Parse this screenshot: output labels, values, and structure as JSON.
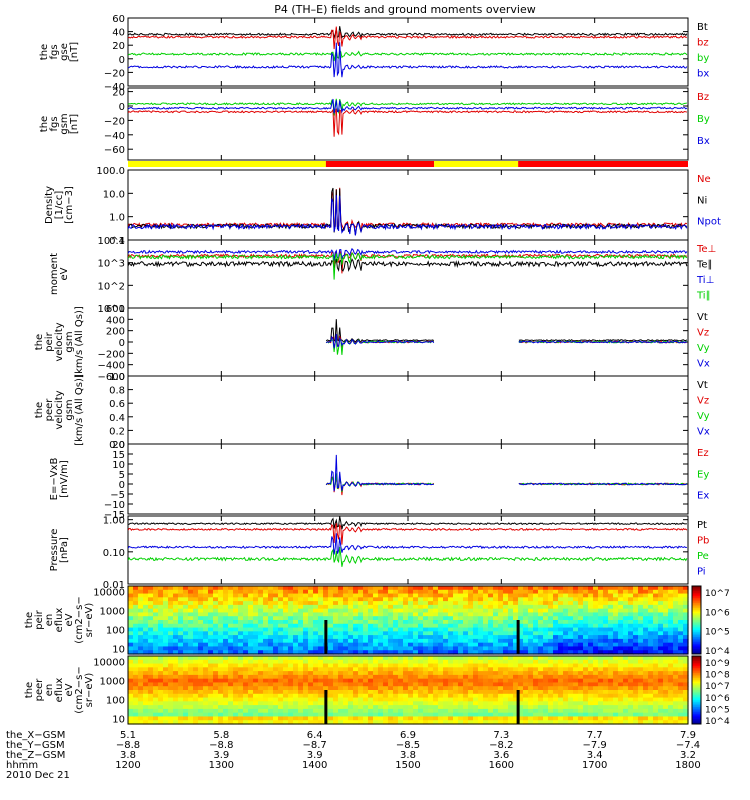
{
  "title": "P4 (TH–E) fields and ground moments overview",
  "colors": {
    "black": "#000000",
    "red": "#e00000",
    "green": "#00d000",
    "blue": "#0000e0",
    "yellow": "#ffff00",
    "purple": "#0000cc",
    "gray": "#000000"
  },
  "chart_data": [
    {
      "type": "line",
      "id": "fgs_gse",
      "ylabel": [
        "the",
        "fgs",
        "gse",
        "[nT]"
      ],
      "ylim": [
        -40,
        60
      ],
      "yticks": [
        "60",
        "40",
        "20",
        "0",
        "−20",
        "−40"
      ],
      "yticks_values": [
        60,
        40,
        20,
        0,
        -20,
        -40
      ],
      "series": [
        {
          "name": "Bt",
          "color": "#000000",
          "base": 36,
          "noise": 1.5,
          "spike": [
            -10,
            15
          ]
        },
        {
          "name": "bz",
          "color": "#e00000",
          "base": 32,
          "noise": 1.5,
          "spike": [
            -25,
            20
          ]
        },
        {
          "name": "by",
          "color": "#00d000",
          "base": 7,
          "noise": 1.5,
          "spike": [
            -10,
            10
          ]
        },
        {
          "name": "bx",
          "color": "#0000e0",
          "base": -12,
          "noise": 1.5,
          "spike": [
            -30,
            40
          ]
        }
      ]
    },
    {
      "type": "line",
      "id": "fgs_gsm",
      "ylabel": [
        "the",
        "fgs",
        "gsm",
        "[nT]"
      ],
      "ylim": [
        -75,
        25
      ],
      "yticks": [
        "20",
        "0",
        "−20",
        "−40",
        "−60"
      ],
      "yticks_values": [
        20,
        0,
        -20,
        -40,
        -60
      ],
      "series": [
        {
          "name": "Bz",
          "color": "#e00000",
          "base": -8,
          "noise": 1.2,
          "spike": [
            -60,
            5
          ]
        },
        {
          "name": "By",
          "color": "#00d000",
          "base": 3,
          "noise": 1.2,
          "spike": [
            -20,
            10
          ]
        },
        {
          "name": "Bx",
          "color": "#0000e0",
          "base": -3,
          "noise": 1.2,
          "spike": [
            -15,
            25
          ]
        }
      ]
    },
    {
      "type": "line",
      "id": "density",
      "ylabel": [
        "Density",
        "[1/cc]",
        "[cm−3]"
      ],
      "ylim": [
        0.1,
        100
      ],
      "log": true,
      "yticks": [
        "100.0",
        "10.0",
        "1.0",
        "0.1"
      ],
      "yticks_values": [
        100,
        10,
        1,
        0.1
      ],
      "series": [
        {
          "name": "Ne",
          "color": "#e00000",
          "base": 0.45,
          "noise": 0.08,
          "spike": [
            -0.2,
            20
          ]
        },
        {
          "name": "Ni",
          "color": "#000000",
          "base": 0.4,
          "noise": 0.08,
          "spike": [
            -0.2,
            30
          ]
        },
        {
          "name": "Npot",
          "color": "#0000e0",
          "base": 0.38,
          "noise": 0.08,
          "spike": [
            -0.2,
            10
          ]
        }
      ]
    },
    {
      "type": "line",
      "id": "temperature",
      "ylabel": [
        "moment",
        "eV"
      ],
      "ylim": [
        10,
        10000
      ],
      "log": true,
      "yticks": [
        "10^4",
        "10^3",
        "10^2",
        "10^1"
      ],
      "yticks_values": [
        10000,
        1000,
        100,
        10
      ],
      "series": [
        {
          "name": "Te⊥",
          "color": "#e00000",
          "base": 2000,
          "noise": 300,
          "spike": [
            -1800,
            2000
          ]
        },
        {
          "name": "Te∥",
          "color": "#000000",
          "base": 900,
          "noise": 200,
          "spike": [
            -800,
            500
          ]
        },
        {
          "name": "Ti⊥",
          "color": "#0000e0",
          "base": 3000,
          "noise": 400,
          "spike": [
            -2500,
            1000
          ]
        },
        {
          "name": "Ti∥",
          "color": "#00d000",
          "base": 1800,
          "noise": 300,
          "spike": [
            -1600,
            800
          ]
        }
      ]
    },
    {
      "type": "line",
      "id": "peir_velocity",
      "ylabel": [
        "the",
        "peir",
        "velocity",
        "gsm",
        "[km/s (All Qs)]"
      ],
      "ylim": [
        -600,
        600
      ],
      "yticks": [
        "600",
        "400",
        "200",
        "0",
        "−200",
        "−400",
        "−600"
      ],
      "yticks_values": [
        600,
        400,
        200,
        0,
        -200,
        -400,
        -600
      ],
      "gaps": [
        [
          1200,
          1412
        ],
        [
          1528,
          1618
        ]
      ],
      "series": [
        {
          "name": "Vt",
          "color": "#000000",
          "base": 30,
          "noise": 10,
          "spike": [
            0,
            420
          ]
        },
        {
          "name": "Vz",
          "color": "#e00000",
          "base": 0,
          "noise": 15,
          "spike": [
            -200,
            200
          ]
        },
        {
          "name": "Vy",
          "color": "#00d000",
          "base": 0,
          "noise": 15,
          "spike": [
            -420,
            100
          ]
        },
        {
          "name": "Vx",
          "color": "#0000e0",
          "base": 0,
          "noise": 15,
          "spike": [
            -150,
            150
          ]
        }
      ]
    },
    {
      "type": "line",
      "id": "peer_velocity",
      "ylabel": [
        "the",
        "peer",
        "velocity",
        "gsm",
        "[km/s (All Qs)]"
      ],
      "ylim": [
        0,
        1
      ],
      "yticks": [
        "1.0",
        "0.8",
        "0.6",
        "0.4",
        "0.2",
        "0.0"
      ],
      "yticks_values": [
        1,
        0.8,
        0.6,
        0.4,
        0.2,
        0
      ],
      "empty": true,
      "series": [
        {
          "name": "Vt",
          "color": "#000000"
        },
        {
          "name": "Vz",
          "color": "#e00000"
        },
        {
          "name": "Vy",
          "color": "#00d000"
        },
        {
          "name": "Vx",
          "color": "#0000e0"
        }
      ]
    },
    {
      "type": "line",
      "id": "efield",
      "ylabel": [
        "E=−VxB",
        "[mV/m]"
      ],
      "ylim": [
        -15,
        20
      ],
      "yticks": [
        "20",
        "15",
        "10",
        "5",
        "0",
        "−5",
        "−10",
        "−15"
      ],
      "yticks_values": [
        20,
        15,
        10,
        5,
        0,
        -5,
        -10,
        -15
      ],
      "gaps": [
        [
          1200,
          1412
        ],
        [
          1528,
          1618
        ]
      ],
      "series": [
        {
          "name": "Ez",
          "color": "#e00000",
          "base": 0,
          "noise": 0.4,
          "spike": [
            -6,
            6
          ]
        },
        {
          "name": "Ey",
          "color": "#00d000",
          "base": 0,
          "noise": 0.4,
          "spike": [
            -5,
            8
          ]
        },
        {
          "name": "Ex",
          "color": "#0000e0",
          "base": 0,
          "noise": 0.4,
          "spike": [
            -4,
            16
          ]
        }
      ]
    },
    {
      "type": "line",
      "id": "pressure",
      "ylabel": [
        "Pressure",
        "[nPa]"
      ],
      "ylim": [
        0.01,
        1.3
      ],
      "log": true,
      "yticks": [
        "1.00",
        "0.10",
        "0.01"
      ],
      "yticks_values": [
        1,
        0.1,
        0.01
      ],
      "series": [
        {
          "name": "Pt",
          "color": "#000000",
          "base": 0.75,
          "noise": 0.04,
          "spike": [
            -0.3,
            0.6
          ]
        },
        {
          "name": "Pb",
          "color": "#e00000",
          "base": 0.5,
          "noise": 0.03,
          "spike": [
            -0.4,
            0.4
          ]
        },
        {
          "name": "Pe",
          "color": "#00d000",
          "base": 0.06,
          "noise": 0.006,
          "spike": [
            -0.03,
            0.1
          ]
        },
        {
          "name": "Pi",
          "color": "#0000e0",
          "base": 0.14,
          "noise": 0.01,
          "spike": [
            -0.08,
            0.3
          ]
        }
      ]
    },
    {
      "type": "heatmap",
      "id": "peir_spec",
      "ylabel": [
        "the",
        "peir",
        "en",
        "eflux",
        "eV",
        "(cm2−s−",
        "sr−eV)"
      ],
      "ylim": [
        5,
        20000
      ],
      "log": true,
      "yticks": [
        "10000",
        "1000",
        "100",
        "10"
      ],
      "yticks_values": [
        10000,
        1000,
        100,
        10
      ],
      "cbar_ticks": [
        "10^7",
        "10^6",
        "10^5",
        "10^4"
      ]
    },
    {
      "type": "heatmap",
      "id": "peer_spec",
      "ylabel": [
        "the",
        "peer",
        "en",
        "eflux",
        "eV",
        "(cm2−s−",
        "sr−eV)"
      ],
      "ylim": [
        5,
        20000
      ],
      "log": true,
      "yticks": [
        "10000",
        "1000",
        "100",
        "10"
      ],
      "yticks_values": [
        10000,
        1000,
        100,
        10
      ],
      "cbar_ticks": [
        "10^9",
        "10^8",
        "10^7",
        "10^6",
        "10^5",
        "10^4"
      ]
    }
  ],
  "mode_bar": {
    "segments": [
      {
        "from": 1200,
        "to": 1412,
        "color": "#ffff00"
      },
      {
        "from": 1412,
        "to": 1528,
        "color": "#ff0000"
      },
      {
        "from": 1528,
        "to": 1618,
        "color": "#ffff00"
      },
      {
        "from": 1618,
        "to": 1800,
        "color": "#ff0000"
      }
    ]
  },
  "xaxis": {
    "range": [
      1200,
      1800
    ],
    "rows": [
      {
        "label": "the_X−GSM",
        "values": [
          "5.1",
          "5.8",
          "6.4",
          "6.9",
          "7.3",
          "7.7",
          "7.9"
        ]
      },
      {
        "label": "the_Y−GSM",
        "values": [
          "−8.8",
          "−8.8",
          "−8.7",
          "−8.5",
          "−8.2",
          "−7.9",
          "−7.4"
        ]
      },
      {
        "label": "the_Z−GSM",
        "values": [
          "3.8",
          "3.9",
          "3.9",
          "3.8",
          "3.6",
          "3.4",
          "3.2"
        ]
      },
      {
        "label": "hhmm",
        "values": [
          "1200",
          "1300",
          "1400",
          "1500",
          "1600",
          "1700",
          "1800"
        ]
      }
    ],
    "date": "2010 Dec 21"
  }
}
